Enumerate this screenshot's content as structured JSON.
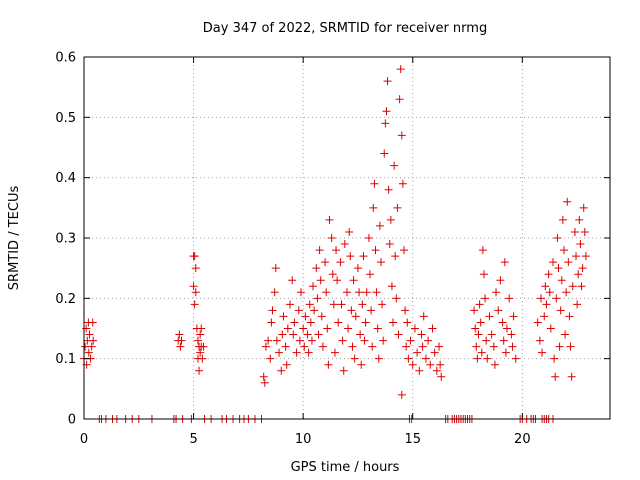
{
  "chart_data": {
    "type": "scatter",
    "title": "Day 347 of 2022, SRMTID for receiver nrmg",
    "xlabel": "GPS time / hours",
    "ylabel": "SRMTID / TECUs",
    "xlim": [
      0,
      24
    ],
    "ylim": [
      0,
      0.6
    ],
    "xticks": [
      0,
      5,
      10,
      15,
      20
    ],
    "xtick_labels": [
      "0",
      "5",
      "10",
      "15",
      "20"
    ],
    "yticks": [
      0,
      0.1,
      0.2,
      0.3,
      0.4,
      0.5,
      0.6
    ],
    "ytick_labels": [
      "0",
      "0.1",
      "0.2",
      "0.3",
      "0.4",
      "0.5",
      "0.6"
    ],
    "grid": true,
    "marker": "plus",
    "color": "#dd0000",
    "series": [
      {
        "name": "SRMTID",
        "points": [
          [
            0.0,
            0.1
          ],
          [
            0.05,
            0.12
          ],
          [
            0.1,
            0.15
          ],
          [
            0.12,
            0.09
          ],
          [
            0.15,
            0.13
          ],
          [
            0.2,
            0.16
          ],
          [
            0.22,
            0.11
          ],
          [
            0.25,
            0.14
          ],
          [
            0.3,
            0.1
          ],
          [
            0.35,
            0.12
          ],
          [
            0.4,
            0.16
          ],
          [
            0.42,
            0.13
          ],
          [
            4.3,
            0.13
          ],
          [
            4.35,
            0.14
          ],
          [
            4.4,
            0.12
          ],
          [
            4.45,
            0.13
          ],
          [
            5.0,
            0.27
          ],
          [
            5.05,
            0.27
          ],
          [
            5.1,
            0.25
          ],
          [
            5.0,
            0.22
          ],
          [
            5.1,
            0.21
          ],
          [
            5.05,
            0.19
          ],
          [
            5.15,
            0.15
          ],
          [
            5.2,
            0.13
          ],
          [
            5.25,
            0.12
          ],
          [
            5.3,
            0.11
          ],
          [
            5.3,
            0.14
          ],
          [
            5.35,
            0.12
          ],
          [
            5.2,
            0.1
          ],
          [
            5.25,
            0.08
          ],
          [
            5.4,
            0.1
          ],
          [
            5.35,
            0.15
          ],
          [
            5.45,
            0.12
          ],
          [
            8.2,
            0.07
          ],
          [
            8.25,
            0.06
          ],
          [
            8.3,
            0.12
          ],
          [
            8.4,
            0.13
          ],
          [
            8.5,
            0.1
          ],
          [
            8.55,
            0.16
          ],
          [
            8.6,
            0.18
          ],
          [
            8.7,
            0.21
          ],
          [
            8.75,
            0.25
          ],
          [
            8.8,
            0.13
          ],
          [
            8.9,
            0.11
          ],
          [
            9.0,
            0.08
          ],
          [
            9.05,
            0.14
          ],
          [
            9.1,
            0.17
          ],
          [
            9.2,
            0.12
          ],
          [
            9.25,
            0.09
          ],
          [
            9.3,
            0.15
          ],
          [
            9.4,
            0.19
          ],
          [
            9.5,
            0.23
          ],
          [
            9.55,
            0.14
          ],
          [
            9.6,
            0.16
          ],
          [
            9.7,
            0.11
          ],
          [
            9.8,
            0.18
          ],
          [
            9.85,
            0.13
          ],
          [
            9.9,
            0.21
          ],
          [
            10.0,
            0.15
          ],
          [
            10.05,
            0.12
          ],
          [
            10.1,
            0.17
          ],
          [
            10.2,
            0.14
          ],
          [
            10.25,
            0.11
          ],
          [
            10.3,
            0.19
          ],
          [
            10.35,
            0.16
          ],
          [
            10.4,
            0.13
          ],
          [
            10.45,
            0.22
          ],
          [
            10.5,
            0.18
          ],
          [
            10.6,
            0.25
          ],
          [
            10.65,
            0.2
          ],
          [
            10.7,
            0.14
          ],
          [
            10.75,
            0.28
          ],
          [
            10.8,
            0.23
          ],
          [
            10.85,
            0.17
          ],
          [
            10.9,
            0.12
          ],
          [
            11.0,
            0.26
          ],
          [
            11.05,
            0.21
          ],
          [
            11.1,
            0.15
          ],
          [
            11.15,
            0.09
          ],
          [
            11.2,
            0.33
          ],
          [
            11.3,
            0.3
          ],
          [
            11.35,
            0.24
          ],
          [
            11.4,
            0.19
          ],
          [
            11.45,
            0.11
          ],
          [
            11.5,
            0.28
          ],
          [
            11.55,
            0.23
          ],
          [
            11.6,
            0.16
          ],
          [
            11.7,
            0.26
          ],
          [
            11.75,
            0.19
          ],
          [
            11.8,
            0.13
          ],
          [
            11.85,
            0.08
          ],
          [
            11.9,
            0.29
          ],
          [
            12.0,
            0.21
          ],
          [
            12.05,
            0.15
          ],
          [
            12.1,
            0.31
          ],
          [
            12.15,
            0.27
          ],
          [
            12.2,
            0.18
          ],
          [
            12.25,
            0.12
          ],
          [
            12.3,
            0.23
          ],
          [
            12.35,
            0.1
          ],
          [
            12.4,
            0.17
          ],
          [
            12.5,
            0.25
          ],
          [
            12.55,
            0.21
          ],
          [
            12.6,
            0.14
          ],
          [
            12.65,
            0.09
          ],
          [
            12.7,
            0.19
          ],
          [
            12.75,
            0.27
          ],
          [
            12.8,
            0.13
          ],
          [
            12.85,
            0.16
          ],
          [
            12.9,
            0.21
          ],
          [
            13.0,
            0.3
          ],
          [
            13.05,
            0.24
          ],
          [
            13.1,
            0.18
          ],
          [
            13.15,
            0.12
          ],
          [
            13.2,
            0.35
          ],
          [
            13.25,
            0.39
          ],
          [
            13.3,
            0.28
          ],
          [
            13.35,
            0.21
          ],
          [
            13.4,
            0.15
          ],
          [
            13.45,
            0.1
          ],
          [
            13.5,
            0.32
          ],
          [
            13.55,
            0.26
          ],
          [
            13.6,
            0.19
          ],
          [
            13.65,
            0.13
          ],
          [
            13.7,
            0.44
          ],
          [
            13.75,
            0.49
          ],
          [
            13.8,
            0.51
          ],
          [
            13.85,
            0.56
          ],
          [
            13.9,
            0.38
          ],
          [
            13.95,
            0.29
          ],
          [
            14.0,
            0.33
          ],
          [
            14.05,
            0.22
          ],
          [
            14.1,
            0.16
          ],
          [
            14.15,
            0.42
          ],
          [
            14.2,
            0.27
          ],
          [
            14.25,
            0.2
          ],
          [
            14.3,
            0.35
          ],
          [
            14.35,
            0.14
          ],
          [
            14.4,
            0.53
          ],
          [
            14.45,
            0.58
          ],
          [
            14.5,
            0.47
          ],
          [
            14.55,
            0.39
          ],
          [
            14.6,
            0.28
          ],
          [
            14.65,
            0.18
          ],
          [
            14.7,
            0.12
          ],
          [
            14.5,
            0.04
          ],
          [
            14.75,
            0.16
          ],
          [
            14.8,
            0.1
          ],
          [
            14.9,
            0.13
          ],
          [
            15.0,
            0.09
          ],
          [
            15.1,
            0.15
          ],
          [
            15.2,
            0.11
          ],
          [
            15.3,
            0.08
          ],
          [
            15.4,
            0.14
          ],
          [
            15.45,
            0.12
          ],
          [
            15.5,
            0.17
          ],
          [
            15.6,
            0.1
          ],
          [
            15.7,
            0.13
          ],
          [
            15.8,
            0.09
          ],
          [
            15.9,
            0.15
          ],
          [
            16.0,
            0.11
          ],
          [
            16.1,
            0.08
          ],
          [
            16.2,
            0.12
          ],
          [
            16.25,
            0.09
          ],
          [
            16.3,
            0.07
          ],
          [
            17.8,
            0.18
          ],
          [
            17.85,
            0.15
          ],
          [
            17.9,
            0.12
          ],
          [
            17.95,
            0.1
          ],
          [
            18.0,
            0.14
          ],
          [
            18.05,
            0.19
          ],
          [
            18.1,
            0.16
          ],
          [
            18.15,
            0.11
          ],
          [
            18.2,
            0.28
          ],
          [
            18.25,
            0.24
          ],
          [
            18.3,
            0.2
          ],
          [
            18.35,
            0.13
          ],
          [
            18.4,
            0.1
          ],
          [
            18.5,
            0.17
          ],
          [
            18.6,
            0.14
          ],
          [
            18.7,
            0.12
          ],
          [
            18.75,
            0.09
          ],
          [
            18.8,
            0.21
          ],
          [
            18.9,
            0.18
          ],
          [
            19.0,
            0.23
          ],
          [
            19.1,
            0.16
          ],
          [
            19.15,
            0.13
          ],
          [
            19.2,
            0.26
          ],
          [
            19.25,
            0.11
          ],
          [
            19.3,
            0.15
          ],
          [
            19.4,
            0.2
          ],
          [
            19.5,
            0.14
          ],
          [
            19.55,
            0.12
          ],
          [
            19.6,
            0.17
          ],
          [
            19.7,
            0.1
          ],
          [
            20.7,
            0.16
          ],
          [
            20.8,
            0.13
          ],
          [
            20.85,
            0.2
          ],
          [
            20.9,
            0.11
          ],
          [
            21.0,
            0.17
          ],
          [
            21.05,
            0.22
          ],
          [
            21.1,
            0.19
          ],
          [
            21.2,
            0.24
          ],
          [
            21.25,
            0.21
          ],
          [
            21.3,
            0.15
          ],
          [
            21.4,
            0.26
          ],
          [
            21.45,
            0.1
          ],
          [
            21.5,
            0.07
          ],
          [
            21.55,
            0.2
          ],
          [
            21.6,
            0.3
          ],
          [
            21.65,
            0.25
          ],
          [
            21.7,
            0.12
          ],
          [
            21.75,
            0.18
          ],
          [
            21.8,
            0.23
          ],
          [
            21.85,
            0.33
          ],
          [
            21.9,
            0.28
          ],
          [
            21.95,
            0.14
          ],
          [
            22.0,
            0.21
          ],
          [
            22.05,
            0.36
          ],
          [
            22.1,
            0.26
          ],
          [
            22.15,
            0.17
          ],
          [
            22.2,
            0.12
          ],
          [
            22.25,
            0.07
          ],
          [
            22.3,
            0.22
          ],
          [
            22.4,
            0.31
          ],
          [
            22.45,
            0.27
          ],
          [
            22.5,
            0.19
          ],
          [
            22.55,
            0.24
          ],
          [
            22.6,
            0.33
          ],
          [
            22.65,
            0.29
          ],
          [
            22.7,
            0.22
          ],
          [
            22.75,
            0.25
          ],
          [
            22.8,
            0.35
          ],
          [
            22.85,
            0.31
          ],
          [
            22.9,
            0.27
          ]
        ],
        "zero_points": [
          0.7,
          0.8,
          1.0,
          1.3,
          1.5,
          1.9,
          2.2,
          2.5,
          3.1,
          4.1,
          4.2,
          4.5,
          4.9,
          5.5,
          5.8,
          6.3,
          6.5,
          6.8,
          7.1,
          7.3,
          7.5,
          7.8,
          8.1,
          14.85,
          14.95,
          16.5,
          16.6,
          16.8,
          16.9,
          17.0,
          17.1,
          17.2,
          17.3,
          17.4,
          17.5,
          17.6,
          17.7,
          19.9,
          20.0,
          20.2,
          20.4,
          20.5,
          20.6,
          20.9,
          21.0,
          21.1,
          21.2,
          21.4
        ]
      }
    ]
  }
}
